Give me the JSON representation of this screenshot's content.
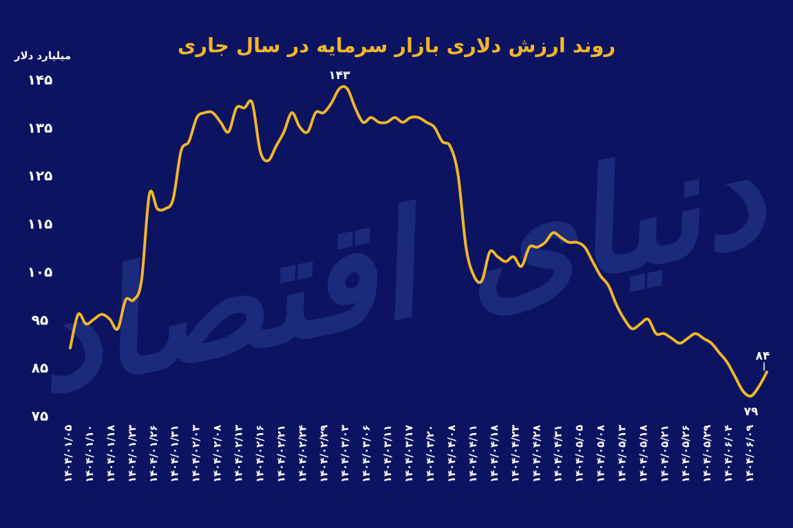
{
  "chart_data": {
    "type": "line",
    "title": "روند ارزش دلاری بازار سرمایه در سال جاری",
    "ylabel": "میلیارد دلار",
    "xlabel": "",
    "ylim": [
      75,
      145
    ],
    "yticks": [
      "۱۴۵",
      "۱۳۵",
      "۱۲۵",
      "۱۱۵",
      "۱۰۵",
      "۹۵",
      "۸۵",
      "۷۵"
    ],
    "ytick_values": [
      145,
      135,
      125,
      115,
      105,
      95,
      85,
      75
    ],
    "xticks": [
      "۱۴۰۴/۰۱/۰۵",
      "۱۴۰۴/۰۱/۱۰",
      "۱۴۰۴/۰۱/۱۸",
      "۱۴۰۴/۰۱/۲۳",
      "۱۴۰۴/۰۱/۲۶",
      "۱۴۰۴/۰۱/۳۱",
      "۱۴۰۴/۰۲/۰۳",
      "۱۴۰۴/۰۲/۰۸",
      "۱۴۰۴/۰۲/۱۳",
      "۱۴۰۴/۰۲/۱۶",
      "۱۴۰۴/۰۲/۲۱",
      "۱۴۰۴/۰۲/۲۴",
      "۱۴۰۴/۰۲/۲۹",
      "۱۴۰۴/۰۳/۰۳",
      "۱۴۰۴/۰۳/۰۶",
      "۱۴۰۴/۰۳/۱۱",
      "۱۴۰۴/۰۳/۱۷",
      "۱۴۰۴/۰۳/۲۰",
      "۱۴۰۴/۰۴/۰۸",
      "۱۴۰۴/۰۴/۱۱",
      "۱۴۰۴/۰۴/۱۸",
      "۱۴۰۴/۰۴/۲۳",
      "۱۴۰۴/۰۴/۲۸",
      "۱۴۰۴/۰۴/۳۱",
      "۱۴۰۴/۰۵/۰۵",
      "۱۴۰۴/۰۵/۰۸",
      "۱۴۰۴/۰۵/۱۳",
      "۱۴۰۴/۰۵/۱۸",
      "۱۴۰۴/۰۵/۲۱",
      "۱۴۰۴/۰۵/۲۶",
      "۱۴۰۴/۰۵/۲۹",
      "۱۴۰۴/۰۶/۰۴",
      "۱۴۰۴/۰۶/۰۹"
    ],
    "values": [
      89,
      96,
      94,
      95,
      96,
      95,
      93,
      99,
      99,
      103,
      121,
      118,
      118,
      120,
      130,
      132,
      137,
      138,
      138,
      136,
      134,
      139,
      139,
      140,
      130,
      128,
      131,
      134,
      138,
      135,
      134,
      138,
      138,
      140,
      143,
      143,
      139,
      136,
      137,
      136,
      136,
      137,
      136,
      137,
      137,
      136,
      135,
      132,
      131,
      125,
      110,
      104,
      103,
      109,
      108,
      107,
      108,
      106,
      110,
      110,
      111,
      113,
      112,
      111,
      111,
      110,
      107,
      104,
      102,
      98,
      95,
      93,
      94,
      95,
      92,
      92,
      91,
      90,
      91,
      92,
      91,
      90,
      88,
      86,
      83,
      80,
      79,
      81,
      84
    ],
    "annotations": [
      {
        "label": "۱۴۳",
        "index": 34
      },
      {
        "label": "۸۴",
        "index": 88
      },
      {
        "label": "۷۹",
        "index": 86
      }
    ],
    "grid": false,
    "legend": "none",
    "colors": {
      "background": "#0c1462",
      "line": "#f2b629",
      "title": "#f2b629",
      "text": "#ffffff",
      "watermark": "#1b2a7a"
    },
    "watermark": "دنیای اقتصاد"
  }
}
